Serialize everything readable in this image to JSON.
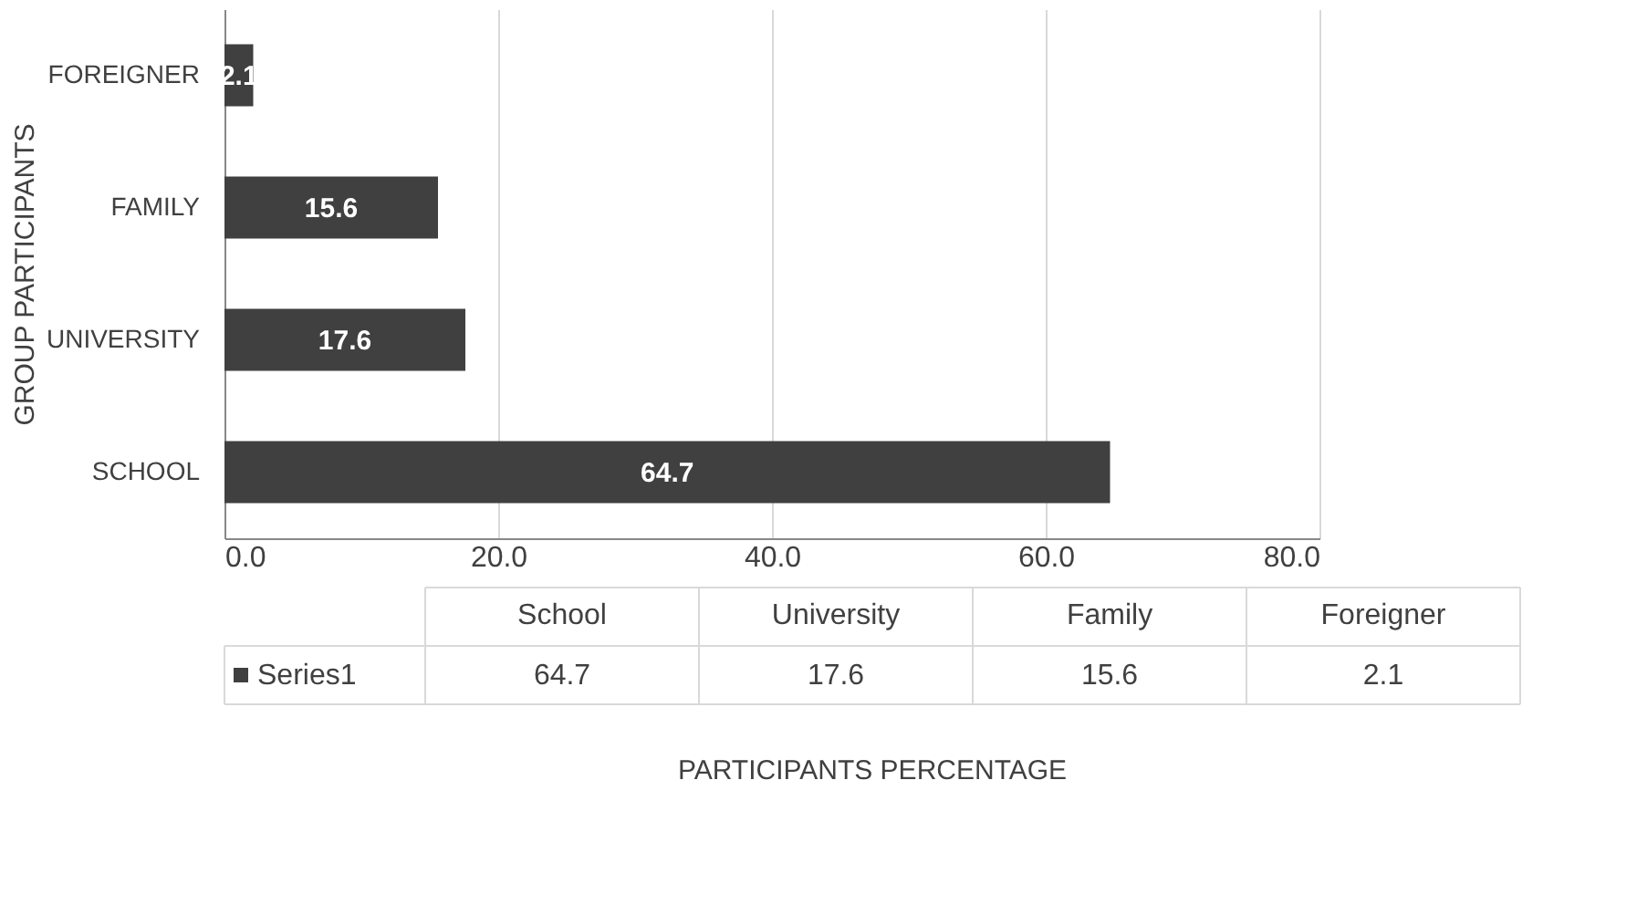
{
  "chart_data": {
    "type": "bar",
    "orientation": "horizontal",
    "ylabel": "GROUP PARTICIPANTS",
    "categories": [
      "FOREIGNER",
      "FAMILY",
      "UNIVERSITY",
      "SCHOOL"
    ],
    "series": [
      {
        "name": "Series1",
        "color": "#404040",
        "values": [
          2.1,
          15.6,
          17.6,
          64.7
        ]
      }
    ],
    "xlim": [
      0,
      80
    ],
    "xticks": [
      {
        "value": 0,
        "label": "0.0"
      },
      {
        "value": 20,
        "label": "20.0"
      },
      {
        "value": 40,
        "label": "40.0"
      },
      {
        "value": 60,
        "label": "60.0"
      },
      {
        "value": 80,
        "label": "80.0"
      }
    ],
    "grid": "x",
    "data_labels": true,
    "legend": "bottom",
    "annotations": [
      "School",
      "University",
      "Family",
      "Foreigner",
      "64.7",
      "17.6",
      "15.6",
      "2.1",
      "PARTICIPANTS PERCENTAGE"
    ]
  }
}
